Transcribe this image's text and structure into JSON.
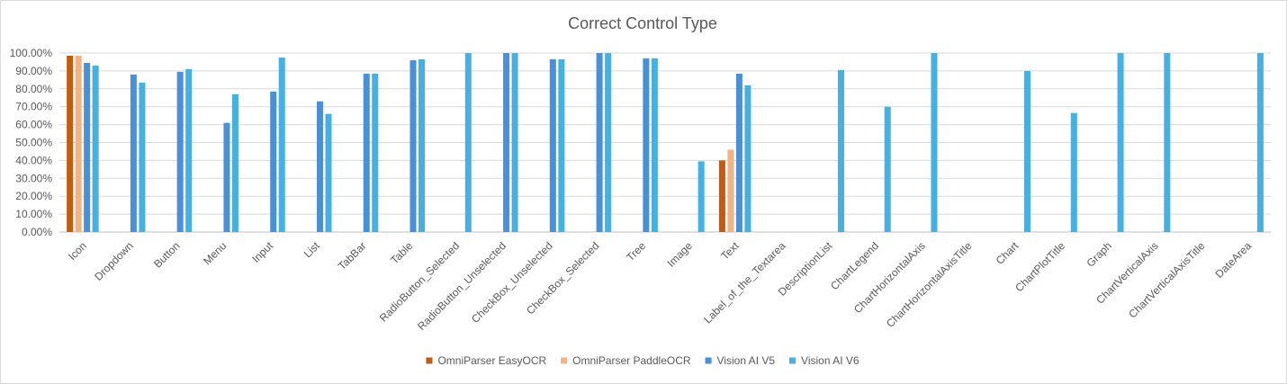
{
  "chart_data": {
    "type": "bar",
    "title": "Correct Control Type",
    "xlabel": "",
    "ylabel": "",
    "ylim": [
      0,
      100
    ],
    "y_tick_step": 10,
    "y_tick_format": "percent_2dp",
    "grid": true,
    "legend_position": "bottom",
    "categories": [
      "Icon",
      "Dropdown",
      "Button",
      "Menu",
      "Input",
      "List",
      "TabBar",
      "Table",
      "RadioButton_Selected",
      "RadioButton_Unselected",
      "CheckBox_Unselected",
      "CheckBox_Selected",
      "Tree",
      "Image",
      "Text",
      "Label_of_the_Textarea",
      "DescriptionList",
      "ChartLegend",
      "ChartHorizontalAxis",
      "ChartHorizontalAxisTitle",
      "Chart",
      "ChartPlotTitle",
      "Graph",
      "ChartVerticalAxis",
      "ChartVerticalAxisTitle",
      "DateArea"
    ],
    "series": [
      {
        "name": "OmniParser EasyOCR",
        "color": "#c55a11",
        "values": [
          98.5,
          null,
          null,
          null,
          null,
          null,
          null,
          null,
          null,
          null,
          null,
          null,
          null,
          null,
          40.0,
          null,
          null,
          null,
          null,
          null,
          null,
          null,
          null,
          null,
          null,
          null
        ]
      },
      {
        "name": "OmniParser PaddleOCR",
        "color": "#f4b183",
        "values": [
          98.5,
          null,
          null,
          null,
          null,
          null,
          null,
          null,
          null,
          null,
          null,
          null,
          null,
          null,
          46.0,
          null,
          null,
          null,
          null,
          null,
          null,
          null,
          null,
          null,
          null,
          null
        ]
      },
      {
        "name": "Vision AI V5",
        "color": "#4a90d9",
        "values": [
          94.5,
          88.0,
          89.5,
          61.0,
          78.5,
          73.0,
          88.5,
          96.0,
          null,
          100.0,
          96.5,
          100.0,
          97.0,
          null,
          88.5,
          null,
          null,
          null,
          null,
          null,
          null,
          null,
          null,
          null,
          null,
          null
        ]
      },
      {
        "name": "Vision AI V6",
        "color": "#45b0e1",
        "values": [
          93.0,
          83.5,
          91.0,
          77.0,
          97.5,
          66.0,
          88.5,
          96.5,
          100.0,
          100.0,
          96.5,
          100.0,
          97.0,
          39.5,
          82.0,
          null,
          90.5,
          70.0,
          100.0,
          null,
          90.0,
          66.5,
          100.0,
          100.0,
          null,
          100.0
        ]
      }
    ]
  }
}
